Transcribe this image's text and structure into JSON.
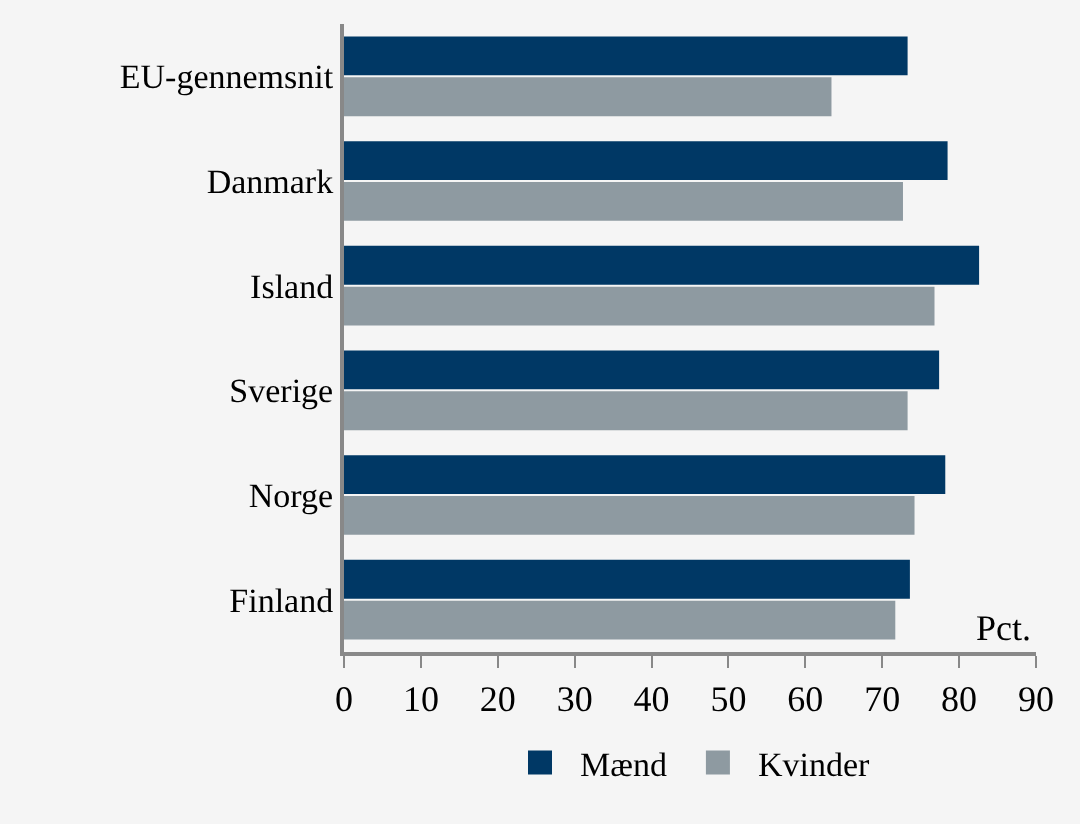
{
  "chart_data": {
    "type": "bar",
    "orientation": "horizontal",
    "categories": [
      "EU-gennemsnit",
      "Danmark",
      "Island",
      "Sverige",
      "Norge",
      "Finland"
    ],
    "series": [
      {
        "name": "Mænd",
        "color": "#003865",
        "values": [
          73.3,
          78.5,
          82.6,
          77.4,
          78.2,
          73.6
        ]
      },
      {
        "name": "Kvinder",
        "color": "#8e9aa1",
        "values": [
          63.4,
          72.7,
          76.8,
          73.3,
          74.2,
          71.7
        ]
      }
    ],
    "xlim": [
      0,
      90
    ],
    "xticks": [
      0,
      10,
      20,
      30,
      40,
      50,
      60,
      70,
      80,
      90
    ],
    "annotations": [
      "Pct."
    ],
    "legend": "bottom",
    "grid": false
  }
}
